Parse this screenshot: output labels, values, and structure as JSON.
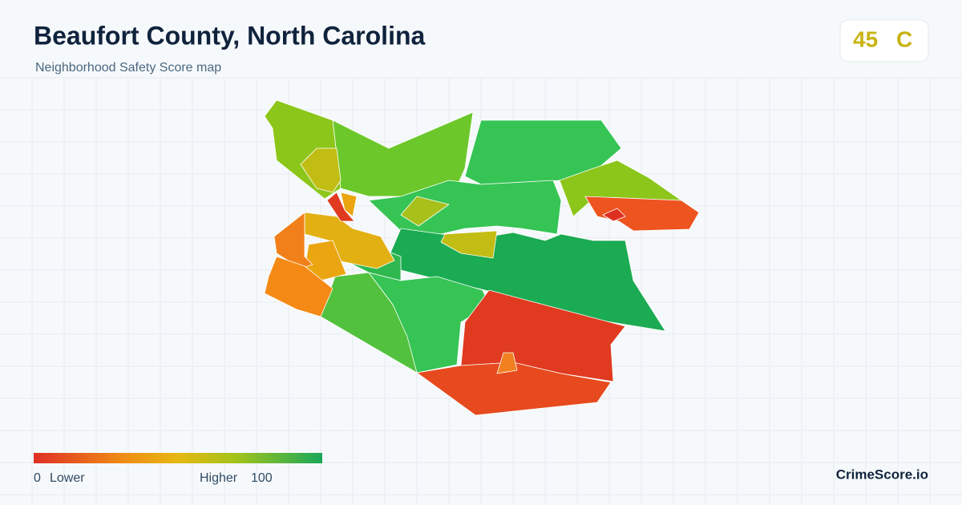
{
  "header": {
    "title": "Beaufort County, North Carolina",
    "subtitle": "Neighborhood Safety Score map"
  },
  "score": {
    "value": 45,
    "grade": "C"
  },
  "legend": {
    "min": 0,
    "min_label": "Lower",
    "max_label": "Higher",
    "max": 100
  },
  "brand": "CrimeScore.io"
}
